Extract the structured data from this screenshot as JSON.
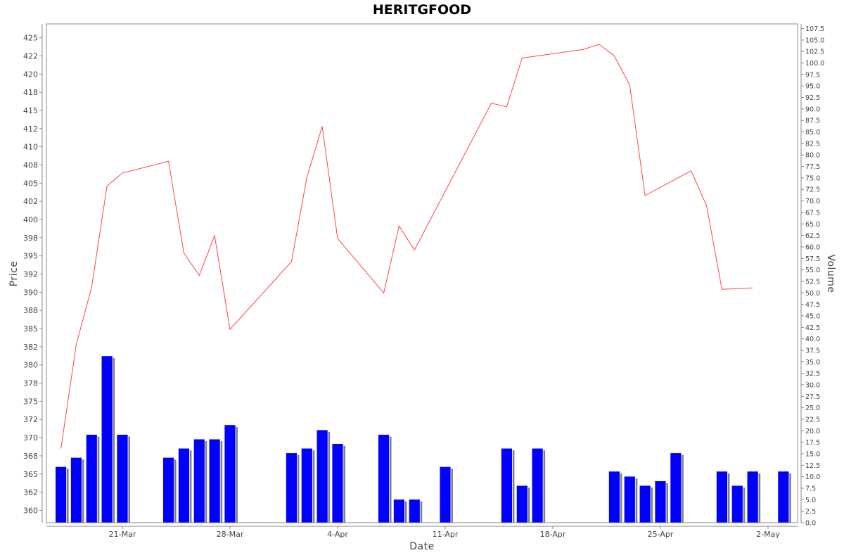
{
  "chart_data": {
    "type": "line",
    "title": "HERITGFOOD",
    "xlabel": "Date",
    "ylabel": "Price",
    "y2label": "Volume",
    "grid": false,
    "x_tick_labels": [
      "21-Mar",
      "28-Mar",
      "4-Apr",
      "11-Apr",
      "18-Apr",
      "25-Apr",
      "2-May"
    ],
    "x_tick_dates": [
      "2022-03-21",
      "2022-03-28",
      "2022-04-04",
      "2022-04-11",
      "2022-04-18",
      "2022-04-25",
      "2022-05-02"
    ],
    "price_axis": {
      "range": [
        358.3,
        426.9
      ],
      "tick_values": [
        360.0,
        362.5,
        365.0,
        367.5,
        370.0,
        372.5,
        375.0,
        377.5,
        380.0,
        382.5,
        385.0,
        387.5,
        390.0,
        392.5,
        395.0,
        397.5,
        400.0,
        402.5,
        405.0,
        407.5,
        410.0,
        412.5,
        415.0,
        417.5,
        420.0,
        422.5,
        425.0
      ],
      "tick_labels": [
        "360",
        "362",
        "365",
        "368",
        "370",
        "372",
        "375",
        "378",
        "380",
        "382",
        "385",
        "388",
        "390",
        "392",
        "395",
        "398",
        "400",
        "402",
        "405",
        "408",
        "410",
        "412",
        "415",
        "418",
        "420",
        "422",
        "425"
      ]
    },
    "volume_axis": {
      "range": [
        0,
        108.5
      ],
      "tick_values": [
        0.0,
        2.5,
        5.0,
        7.5,
        10.0,
        12.5,
        15.0,
        17.5,
        20.0,
        22.5,
        25.0,
        27.5,
        30.0,
        32.5,
        35.0,
        37.5,
        40.0,
        42.5,
        45.0,
        47.5,
        50.0,
        52.5,
        55.0,
        57.5,
        60.0,
        62.5,
        65.0,
        67.5,
        70.0,
        72.5,
        75.0,
        77.5,
        80.0,
        82.5,
        85.0,
        87.5,
        90.0,
        92.5,
        95.0,
        97.5,
        100.0,
        102.5,
        105.0,
        107.5
      ],
      "tick_labels": [
        "0.0",
        "2.5",
        "5.0",
        "7.5",
        "10.0",
        "12.5",
        "15.0",
        "17.5",
        "20.0",
        "22.5",
        "25.0",
        "27.5",
        "30.0",
        "32.5",
        "35.0",
        "37.5",
        "40.0",
        "42.5",
        "45.0",
        "47.5",
        "50.0",
        "52.5",
        "55.0",
        "57.5",
        "60.0",
        "62.5",
        "65.0",
        "67.5",
        "70.0",
        "72.5",
        "75.0",
        "77.5",
        "80.0",
        "82.5",
        "85.0",
        "87.5",
        "90.0",
        "92.5",
        "95.0",
        "97.5",
        "100.0",
        "102.5",
        "105.0",
        "107.5"
      ]
    },
    "series": [
      {
        "kind": "line",
        "color": "#ff4444",
        "axis": "price",
        "points": [
          [
            "2022-03-17",
            368.5
          ],
          [
            "2022-03-18",
            382.8
          ],
          [
            "2022-03-19",
            390.7
          ],
          [
            "2022-03-20",
            404.6
          ],
          [
            "2022-03-21",
            406.4
          ],
          [
            "2022-03-24",
            408.0
          ],
          [
            "2022-03-25",
            395.4
          ],
          [
            "2022-03-26",
            392.3
          ],
          [
            "2022-03-27",
            397.8
          ],
          [
            "2022-03-28",
            384.9
          ],
          [
            "2022-04-01",
            394.2
          ],
          [
            "2022-04-02",
            405.8
          ],
          [
            "2022-04-03",
            412.8
          ],
          [
            "2022-04-04",
            397.4
          ],
          [
            "2022-04-07",
            389.9
          ],
          [
            "2022-04-08",
            399.1
          ],
          [
            "2022-04-09",
            395.8
          ],
          [
            "2022-04-14",
            416.0
          ],
          [
            "2022-04-15",
            415.5
          ],
          [
            "2022-04-16",
            422.2
          ],
          [
            "2022-04-20",
            423.4
          ],
          [
            "2022-04-21",
            424.1
          ],
          [
            "2022-04-22",
            422.5
          ],
          [
            "2022-04-23",
            418.5
          ],
          [
            "2022-04-24",
            403.3
          ],
          [
            "2022-04-27",
            406.7
          ],
          [
            "2022-04-28",
            401.9
          ],
          [
            "2022-04-29",
            390.4
          ],
          [
            "2022-05-01",
            390.6
          ]
        ]
      },
      {
        "kind": "bar",
        "color": "#0000ff",
        "axis": "volume",
        "points": [
          [
            "2022-03-17",
            12.2
          ],
          [
            "2022-03-18",
            14.2
          ],
          [
            "2022-03-19",
            19.2
          ],
          [
            "2022-03-20",
            36.3
          ],
          [
            "2022-03-21",
            19.2
          ],
          [
            "2022-03-24",
            14.2
          ],
          [
            "2022-03-25",
            16.2
          ],
          [
            "2022-03-26",
            18.2
          ],
          [
            "2022-03-27",
            18.2
          ],
          [
            "2022-03-28",
            21.3
          ],
          [
            "2022-04-01",
            15.2
          ],
          [
            "2022-04-02",
            16.2
          ],
          [
            "2022-04-03",
            20.2
          ],
          [
            "2022-04-04",
            17.2
          ],
          [
            "2022-04-07",
            19.2
          ],
          [
            "2022-04-08",
            5.1
          ],
          [
            "2022-04-09",
            5.1
          ],
          [
            "2022-04-11",
            12.2
          ],
          [
            "2022-04-15",
            16.2
          ],
          [
            "2022-04-16",
            8.1
          ],
          [
            "2022-04-17",
            16.2
          ],
          [
            "2022-04-22",
            11.2
          ],
          [
            "2022-04-23",
            10.1
          ],
          [
            "2022-04-24",
            8.1
          ],
          [
            "2022-04-25",
            9.1
          ],
          [
            "2022-04-26",
            15.2
          ],
          [
            "2022-04-29",
            11.2
          ],
          [
            "2022-04-30",
            8.1
          ],
          [
            "2022-05-01",
            11.2
          ],
          [
            "2022-05-03",
            11.2
          ]
        ]
      }
    ]
  }
}
